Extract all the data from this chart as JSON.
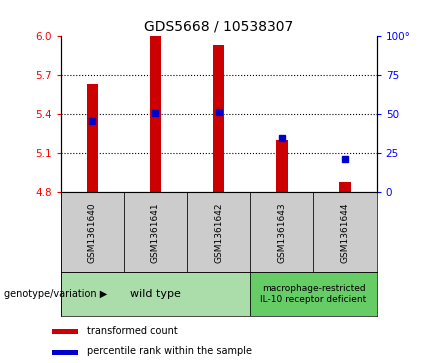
{
  "title": "GDS5668 / 10538307",
  "samples": [
    "GSM1361640",
    "GSM1361641",
    "GSM1361642",
    "GSM1361643",
    "GSM1361644"
  ],
  "bar_bottoms": [
    4.8,
    4.8,
    4.8,
    4.8,
    4.8
  ],
  "bar_tops": [
    5.63,
    6.0,
    5.93,
    5.2,
    4.88
  ],
  "percentile_values": [
    5.35,
    5.41,
    5.42,
    5.22,
    5.06
  ],
  "ylim_left": [
    4.8,
    6.0
  ],
  "yticks_left": [
    4.8,
    5.1,
    5.4,
    5.7,
    6.0
  ],
  "yticks_right": [
    0,
    25,
    50,
    75,
    100
  ],
  "bar_color": "#cc0000",
  "percentile_color": "#0000cc",
  "group1_label": "wild type",
  "group2_label": "macrophage-restricted\nIL-10 receptor deficient",
  "group1_indices": [
    0,
    1,
    2
  ],
  "group2_indices": [
    3,
    4
  ],
  "group1_color": "#aaddaa",
  "group2_color": "#66cc66",
  "sample_box_color": "#cccccc",
  "legend_red_label": "transformed count",
  "legend_blue_label": "percentile rank within the sample",
  "genotype_label": "genotype/variation",
  "bar_width": 0.18,
  "title_fontsize": 10,
  "tick_fontsize": 7.5,
  "sample_fontsize": 6.5,
  "geno_fontsize1": 8,
  "geno_fontsize2": 6.5,
  "legend_fontsize": 7
}
